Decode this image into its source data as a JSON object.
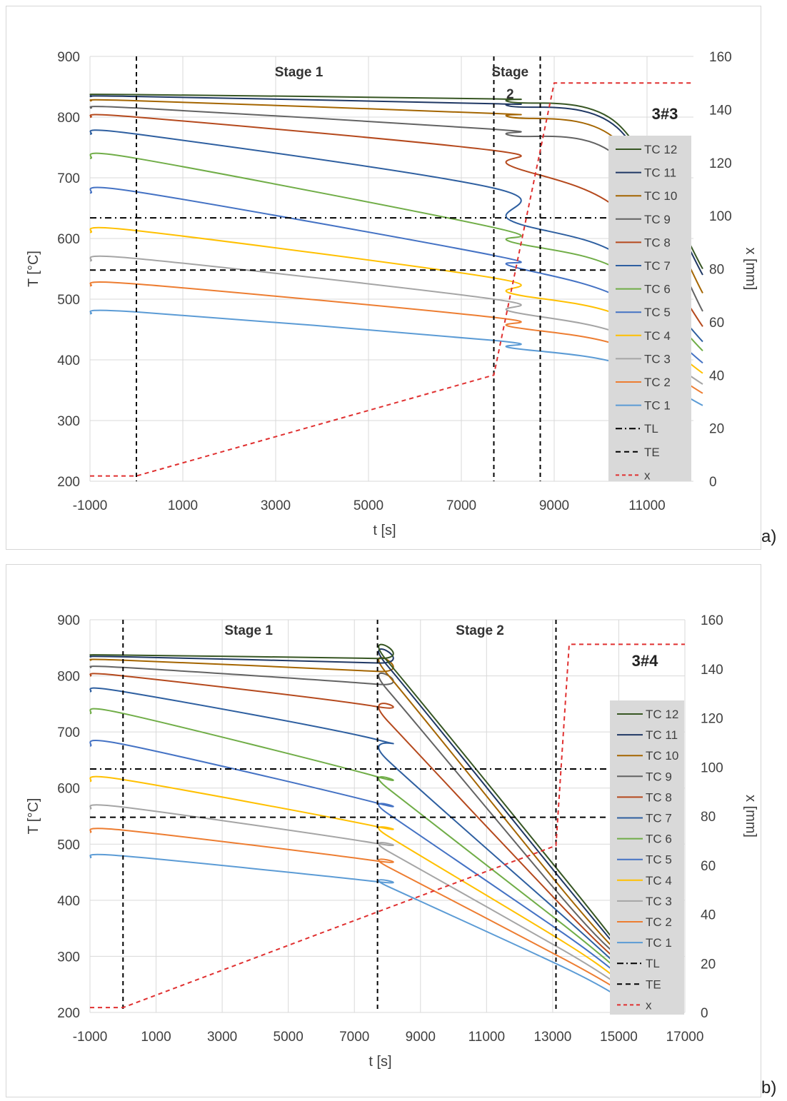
{
  "panel_labels": [
    "a)",
    "b)"
  ],
  "chart_data": [
    {
      "type": "line",
      "xlabel": "t [s]",
      "ylabel": "T [°C]",
      "y2label": "x [mm]",
      "xlim": [
        -1000,
        12000
      ],
      "ylim": [
        200,
        900
      ],
      "y2lim": [
        0,
        160
      ],
      "x_ticks": [
        -1000,
        1000,
        3000,
        5000,
        7000,
        9000,
        11000
      ],
      "y_ticks": [
        200,
        300,
        400,
        500,
        600,
        700,
        800,
        900
      ],
      "y2_ticks": [
        0,
        20,
        40,
        60,
        80,
        100,
        120,
        140,
        160
      ],
      "grid": true,
      "tag": "3#3",
      "stage_labels": [
        {
          "text": "Stage 1",
          "x": 3500
        },
        {
          "text": "Stage",
          "x": 8050
        },
        {
          "text": "2",
          "x": 8050
        }
      ],
      "vlines": [
        0,
        7700,
        8700
      ],
      "reference_lines": [
        {
          "name": "TL",
          "y": 634,
          "style": "dashdot",
          "color": "#000000"
        },
        {
          "name": "TE",
          "y": 548,
          "style": "dashed",
          "color": "#000000"
        }
      ],
      "stage_boundaries": [
        0,
        7700,
        12000
      ],
      "series": [
        {
          "name": "TC 12",
          "color": "#375623",
          "values": [
            837,
            837,
            830,
            825,
            790,
            550
          ]
        },
        {
          "name": "TC 11",
          "color": "#203864",
          "values": [
            834,
            834,
            822,
            818,
            783,
            540
          ]
        },
        {
          "name": "TC 10",
          "color": "#a46500",
          "values": [
            827,
            827,
            806,
            800,
            762,
            510
          ]
        },
        {
          "name": "TC 9",
          "color": "#636363",
          "values": [
            815,
            815,
            780,
            770,
            735,
            480
          ]
        },
        {
          "name": "TC 8",
          "color": "#b5491d",
          "values": [
            800,
            800,
            745,
            720,
            650,
            455
          ]
        },
        {
          "name": "TC 7",
          "color": "#2e5fa0",
          "values": [
            772,
            772,
            683,
            630,
            575,
            430
          ]
        },
        {
          "name": "TC 6",
          "color": "#70ad47",
          "values": [
            732,
            732,
            618,
            595,
            550,
            415
          ]
        },
        {
          "name": "TC 5",
          "color": "#4472c4",
          "values": [
            675,
            677,
            572,
            555,
            505,
            395
          ]
        },
        {
          "name": "TC 4",
          "color": "#ffc000",
          "values": [
            610,
            613,
            535,
            510,
            475,
            378
          ]
        },
        {
          "name": "TC 3",
          "color": "#a5a5a5",
          "values": [
            563,
            567,
            500,
            480,
            445,
            360
          ]
        },
        {
          "name": "TC 2",
          "color": "#ed7d31",
          "values": [
            522,
            525,
            470,
            455,
            425,
            345
          ]
        },
        {
          "name": "TC 1",
          "color": "#5b9bd5",
          "values": [
            476,
            479,
            432,
            420,
            395,
            325
          ]
        }
      ],
      "x_series": {
        "name": "x",
        "color": "#e03030",
        "points": [
          [
            -1000,
            2
          ],
          [
            0,
            2
          ],
          [
            7700,
            40
          ],
          [
            9000,
            150
          ],
          [
            12000,
            150
          ]
        ]
      },
      "legend": [
        "TC 12",
        "TC 11",
        "TC 10",
        "TC 9",
        "TC 8",
        "TC 7",
        "TC 6",
        "TC 5",
        "TC 4",
        "TC 3",
        "TC 2",
        "TC 1",
        "TL",
        "TE",
        "x"
      ],
      "legend_position": "right"
    },
    {
      "type": "line",
      "xlabel": "t [s]",
      "ylabel": "T [°C]",
      "y2label": "x [mm]",
      "xlim": [
        -1000,
        17000
      ],
      "ylim": [
        200,
        900
      ],
      "y2lim": [
        0,
        160
      ],
      "x_ticks": [
        -1000,
        1000,
        3000,
        5000,
        7000,
        9000,
        11000,
        13000,
        15000,
        17000
      ],
      "y_ticks": [
        200,
        300,
        400,
        500,
        600,
        700,
        800,
        900
      ],
      "y2_ticks": [
        0,
        20,
        40,
        60,
        80,
        100,
        120,
        140,
        160
      ],
      "grid": true,
      "tag": "3#4",
      "stage_labels": [
        {
          "text": "Stage 1",
          "x": 3800
        },
        {
          "text": "Stage 2",
          "x": 10800
        }
      ],
      "vlines": [
        0,
        7700,
        13100
      ],
      "reference_lines": [
        {
          "name": "TL",
          "y": 634,
          "style": "dashdot",
          "color": "#000000"
        },
        {
          "name": "TE",
          "y": 548,
          "style": "dashed",
          "color": "#000000"
        }
      ],
      "stage_boundaries": [
        0,
        7700,
        15000
      ],
      "series": [
        {
          "name": "TC 12",
          "color": "#375623",
          "values": [
            837,
            837,
            831,
            826,
            440,
            318
          ]
        },
        {
          "name": "TC 11",
          "color": "#203864",
          "values": [
            834,
            834,
            823,
            818,
            430,
            312
          ]
        },
        {
          "name": "TC 10",
          "color": "#a46500",
          "values": [
            828,
            828,
            808,
            803,
            415,
            305
          ]
        },
        {
          "name": "TC 9",
          "color": "#636363",
          "values": [
            815,
            815,
            785,
            775,
            400,
            298
          ]
        },
        {
          "name": "TC 8",
          "color": "#b5491d",
          "values": [
            800,
            800,
            745,
            720,
            385,
            290
          ]
        },
        {
          "name": "TC 7",
          "color": "#2e5fa0",
          "values": [
            772,
            772,
            686,
            650,
            370,
            282
          ]
        },
        {
          "name": "TC 6",
          "color": "#70ad47",
          "values": [
            733,
            733,
            620,
            600,
            355,
            275
          ]
        },
        {
          "name": "TC 5",
          "color": "#4472c4",
          "values": [
            675,
            678,
            573,
            555,
            340,
            267
          ]
        },
        {
          "name": "TC 4",
          "color": "#ffc000",
          "values": [
            612,
            615,
            531,
            515,
            325,
            258
          ]
        },
        {
          "name": "TC 3",
          "color": "#a5a5a5",
          "values": [
            563,
            566,
            501,
            488,
            310,
            249
          ]
        },
        {
          "name": "TC 2",
          "color": "#ed7d31",
          "values": [
            521,
            525,
            470,
            460,
            295,
            240
          ]
        },
        {
          "name": "TC 1",
          "color": "#5b9bd5",
          "values": [
            476,
            479,
            433,
            425,
            280,
            228
          ]
        }
      ],
      "x_series": {
        "name": "x",
        "color": "#e03030",
        "points": [
          [
            -1000,
            2
          ],
          [
            0,
            2
          ],
          [
            7700,
            41
          ],
          [
            13100,
            68
          ],
          [
            13500,
            150
          ],
          [
            17000,
            150
          ]
        ]
      },
      "legend": [
        "TC 12",
        "TC 11",
        "TC 10",
        "TC 9",
        "TC 8",
        "TC 7",
        "TC 6",
        "TC 5",
        "TC 4",
        "TC 3",
        "TC 2",
        "TC 1",
        "TL",
        "TE",
        "x"
      ],
      "legend_position": "right"
    }
  ]
}
